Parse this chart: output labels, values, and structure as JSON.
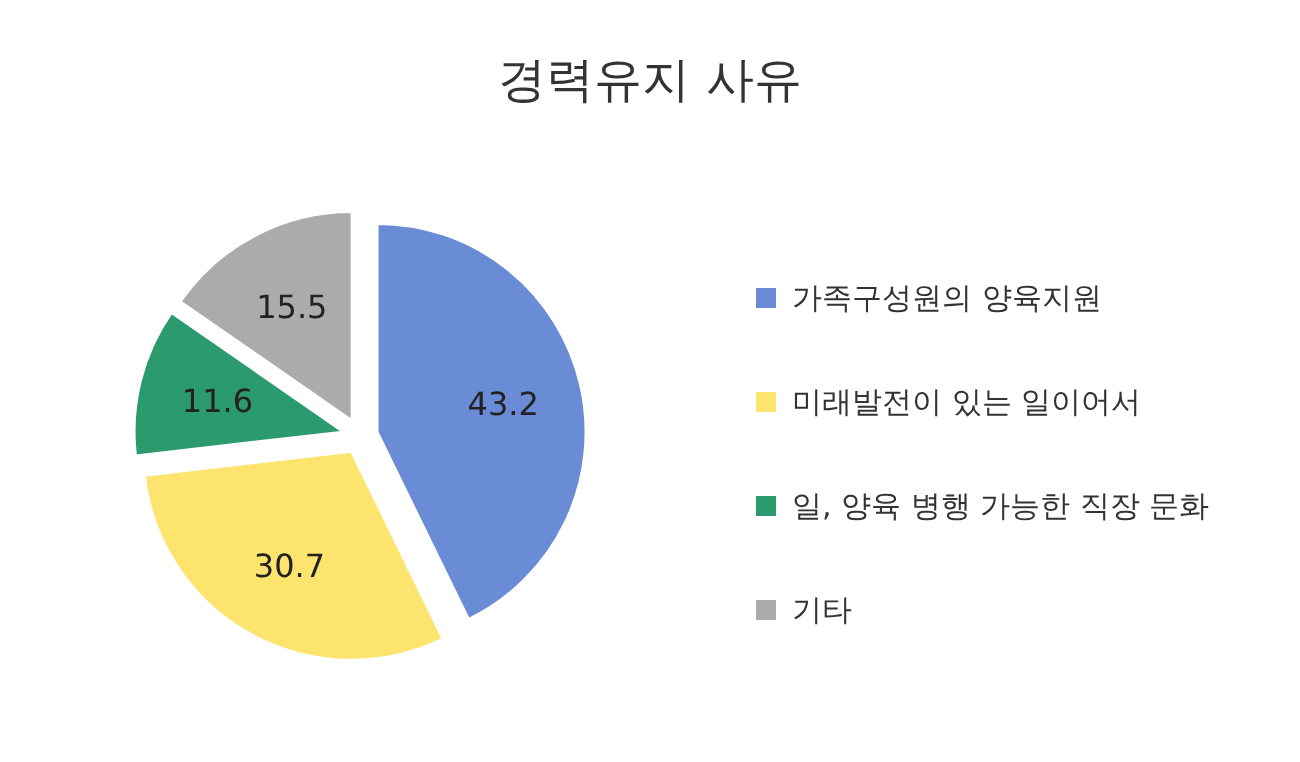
{
  "chart_data": {
    "type": "pie",
    "title": "경력유지 사유",
    "categories": [
      "가족구성원의 양육지원",
      "미래발전이 있는 일이어서",
      "일, 양육 병행 가능한 직장 문화",
      "기타"
    ],
    "values": [
      43.2,
      30.7,
      11.6,
      15.5
    ],
    "colors": [
      "#6a8bd6",
      "#fde46f",
      "#2b9a6e",
      "#ababab"
    ],
    "data_labels": true,
    "legend": "right"
  }
}
